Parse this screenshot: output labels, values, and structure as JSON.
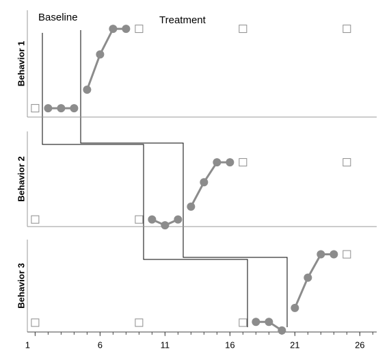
{
  "chart_data": [
    {
      "type": "line",
      "ylabel": "Behavior 1",
      "annotations": [
        "Baseline",
        "Treatment"
      ],
      "xlim": [
        0.4,
        27.3
      ],
      "ylim": [
        0,
        121
      ],
      "series": [
        {
          "color": "#8c8c8c",
          "marker": "circle",
          "x": [
            2,
            3,
            4
          ],
          "values": [
            10,
            10,
            10
          ]
        },
        {
          "color": "#8c8c8c",
          "marker": "circle",
          "x": [
            5,
            6,
            7,
            8
          ],
          "values": [
            31,
            71,
            100,
            100
          ]
        },
        {
          "color": "#8c8c8c",
          "marker": "square",
          "x": [
            1,
            9,
            17,
            25
          ],
          "values": [
            10,
            100,
            100,
            100
          ]
        }
      ]
    },
    {
      "type": "line",
      "ylabel": "Behavior 2",
      "xlim": [
        0.4,
        27.3
      ],
      "ylim": [
        0,
        148
      ],
      "series": [
        {
          "color": "#8c8c8c",
          "marker": "circle",
          "x": [
            10,
            11,
            12
          ],
          "values": [
            11,
            2,
            11
          ]
        },
        {
          "color": "#8c8c8c",
          "marker": "circle",
          "x": [
            13,
            14,
            15,
            16
          ],
          "values": [
            31,
            69,
            100,
            100
          ]
        },
        {
          "color": "#8c8c8c",
          "marker": "square",
          "x": [
            1,
            9,
            17,
            25
          ],
          "values": [
            11,
            11,
            100,
            100
          ]
        }
      ]
    },
    {
      "type": "line",
      "ylabel": "Behavior 3",
      "xlim": [
        0.4,
        27.3
      ],
      "ylim": [
        0,
        119
      ],
      "xticks": [
        1,
        6,
        11,
        16,
        21,
        26
      ],
      "series": [
        {
          "color": "#8c8c8c",
          "marker": "circle",
          "x": [
            18,
            19,
            20
          ],
          "values": [
            13,
            13,
            2
          ]
        },
        {
          "color": "#8c8c8c",
          "marker": "circle",
          "x": [
            21,
            22,
            23,
            24
          ],
          "values": [
            31,
            70,
            100,
            100
          ]
        },
        {
          "color": "#8c8c8c",
          "marker": "square",
          "x": [
            1,
            9,
            17,
            25
          ],
          "values": [
            12,
            12,
            12,
            100
          ]
        }
      ]
    }
  ]
}
